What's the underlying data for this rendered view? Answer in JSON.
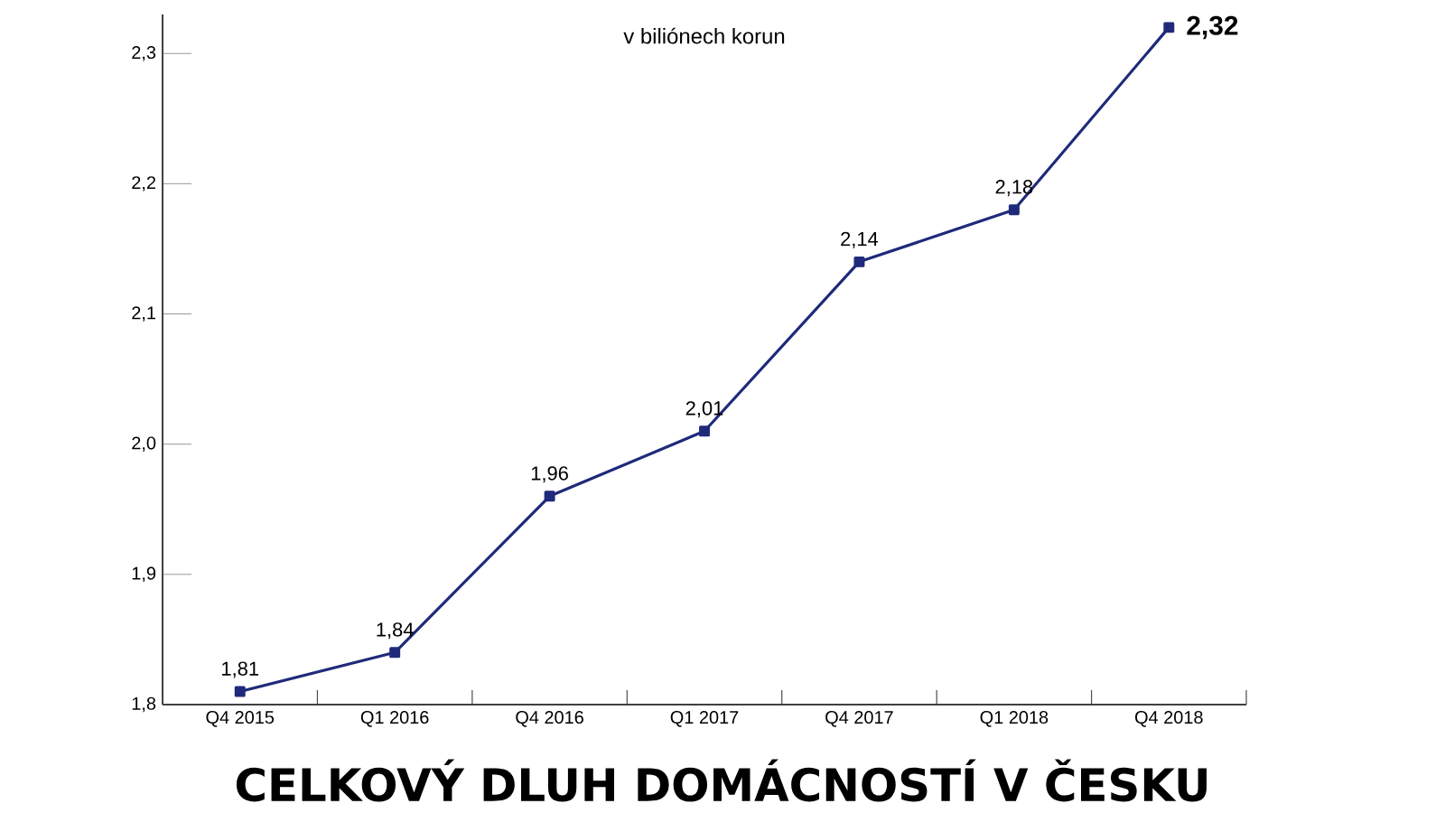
{
  "chart_data": {
    "type": "line",
    "title": "CELKOVÝ DLUH DOMÁCNOSTÍ V ČESKU",
    "subtitle": "v biliónech korun",
    "categories": [
      "Q4 2015",
      "Q1 2016",
      "Q4 2016",
      "Q1 2017",
      "Q4 2017",
      "Q1 2018",
      "Q4 2018"
    ],
    "series": [
      {
        "color": "#1f2a7a",
        "values": [
          1.81,
          1.84,
          1.96,
          2.01,
          2.14,
          2.18,
          2.32
        ],
        "value_labels": [
          "1,81",
          "1,84",
          "1,96",
          "2,01",
          "2,14",
          "2,18",
          "2,32"
        ]
      }
    ],
    "ylim": [
      1.8,
      2.33
    ],
    "yticks": [
      {
        "value": 1.8,
        "label": "1,8"
      },
      {
        "value": 1.9,
        "label": "1,9"
      },
      {
        "value": 2.0,
        "label": "2,0"
      },
      {
        "value": 2.1,
        "label": "2,1"
      },
      {
        "value": 2.2,
        "label": "2,2"
      },
      {
        "value": 2.3,
        "label": "2,3"
      }
    ],
    "marker": "square",
    "line_style": "solid"
  }
}
